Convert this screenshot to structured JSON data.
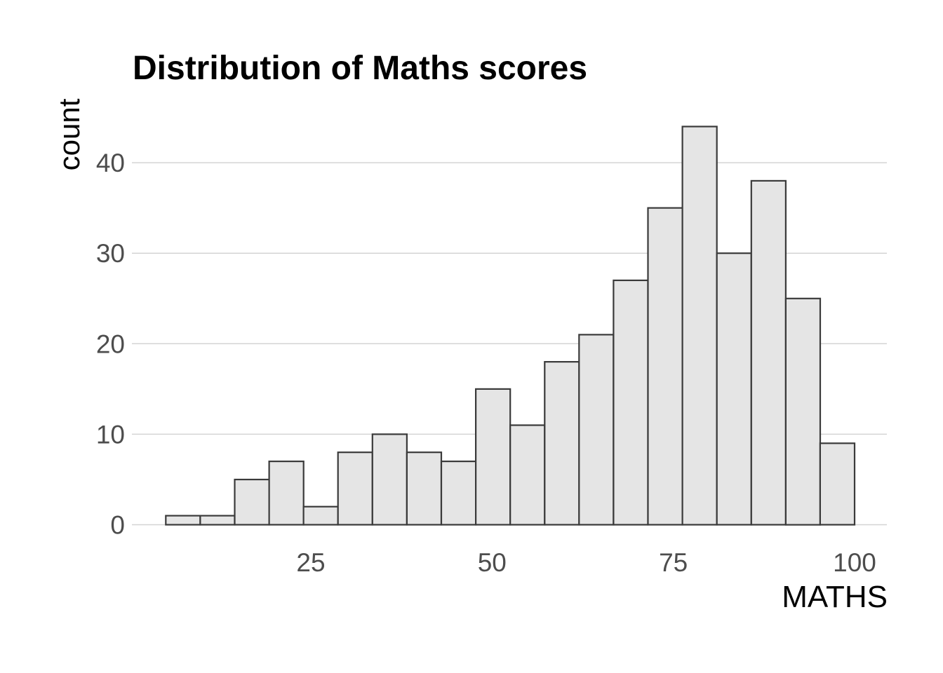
{
  "chart_data": {
    "type": "bar",
    "subtype": "histogram",
    "title": "Distribution of Maths scores",
    "xlabel": "MATHS",
    "ylabel": "count",
    "bin_start": 5,
    "bin_width": 4.75,
    "bin_count": 20,
    "counts": [
      1,
      1,
      5,
      7,
      2,
      8,
      10,
      8,
      7,
      15,
      11,
      18,
      21,
      27,
      35,
      44,
      30,
      38,
      25,
      9
    ],
    "x_ticks": [
      25,
      50,
      75,
      100
    ],
    "y_ticks": [
      0,
      10,
      20,
      30,
      40
    ],
    "x_range": [
      0.3,
      104.6
    ],
    "y_range": [
      0,
      46.2
    ],
    "grid": "horizontal-major-only",
    "legend": "none",
    "colors": {
      "background": "#FFFFFF",
      "bar_fill": "#E5E5E5",
      "bar_stroke": "#3A3A3A",
      "gridline": "#D4D4D4",
      "tick_label": "#4D4D4D",
      "title": "#000000"
    }
  }
}
